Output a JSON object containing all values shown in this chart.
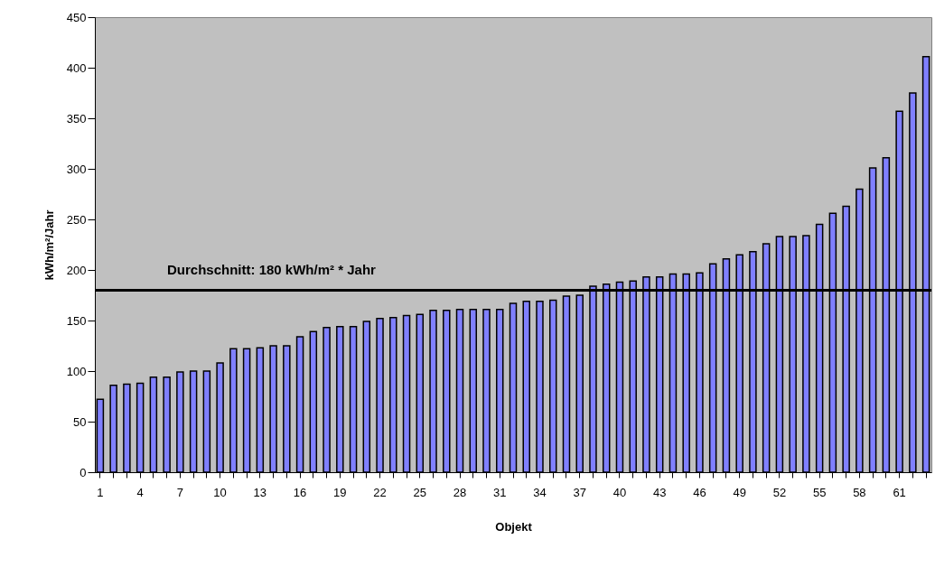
{
  "chart_data": {
    "type": "bar",
    "xlabel": "Objekt",
    "ylabel": "kWh/m²/Jahr",
    "categories": [
      "1",
      null,
      null,
      "4",
      null,
      null,
      "7",
      null,
      null,
      "10",
      null,
      null,
      "13",
      null,
      null,
      "16",
      null,
      null,
      "19",
      null,
      null,
      "22",
      null,
      null,
      "25",
      null,
      null,
      "28",
      null,
      null,
      "31",
      null,
      null,
      "34",
      null,
      null,
      "37",
      null,
      null,
      "40",
      null,
      null,
      "43",
      null,
      null,
      "46",
      null,
      null,
      "49",
      null,
      null,
      "52",
      null,
      null,
      "55",
      null,
      null,
      "58",
      null,
      null,
      "61",
      null,
      null
    ],
    "values": [
      72,
      86,
      87,
      88,
      94,
      94,
      99,
      100,
      100,
      108,
      122,
      122,
      123,
      125,
      125,
      134,
      139,
      143,
      144,
      144,
      149,
      152,
      153,
      155,
      156,
      160,
      160,
      161,
      161,
      161,
      161,
      167,
      169,
      169,
      170,
      174,
      175,
      184,
      186,
      188,
      189,
      193,
      193,
      196,
      196,
      197,
      206,
      211,
      215,
      218,
      226,
      233,
      233,
      234,
      245,
      256,
      263,
      280,
      301,
      311,
      357,
      375,
      411
    ],
    "color": "#8080ff",
    "ylim": [
      0,
      450
    ],
    "yticks": [
      0,
      50,
      100,
      150,
      200,
      250,
      300,
      350,
      400,
      450
    ],
    "ref_lines": [
      {
        "axis": "y",
        "value": 180,
        "label": "Durchschnitt: 180 kWh/m² * Jahr",
        "color": "#000000"
      }
    ],
    "grid": false
  }
}
